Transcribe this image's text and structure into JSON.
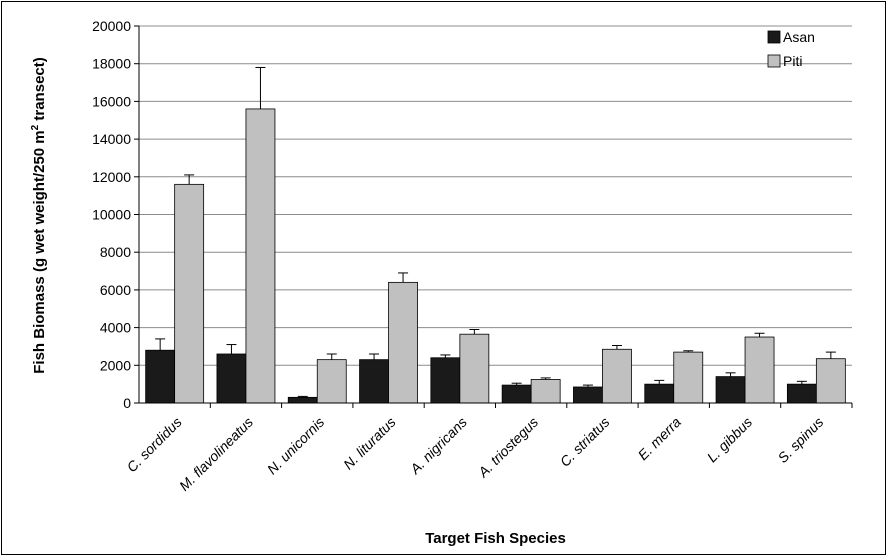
{
  "chart_data": {
    "type": "bar",
    "xlabel": "Target Fish Species",
    "ylabel_parts": {
      "before": "Fish Biomass (g wet weight/250 m",
      "sup": "2",
      "after": " transect)"
    },
    "ylim": [
      0,
      20000
    ],
    "ytick_step": 2000,
    "yticks": [
      "0",
      "2000",
      "4000",
      "6000",
      "8000",
      "10000",
      "12000",
      "14000",
      "16000",
      "18000",
      "20000"
    ],
    "grid": "horizontal",
    "legend_position": "top-right",
    "categories": [
      "C. sordidus",
      "M. flavolineatus",
      "N. unicornis",
      "N. lituratus",
      "A. nigricans",
      "A. triostegus",
      "C. striatus",
      "E. merra",
      "L. gibbus",
      "S. spinus"
    ],
    "series": [
      {
        "name": "Asan",
        "color": "#1a1a1a",
        "values": [
          2800,
          2600,
          300,
          2300,
          2400,
          950,
          850,
          1000,
          1400,
          1000
        ],
        "errors": [
          600,
          500,
          50,
          300,
          150,
          100,
          100,
          200,
          200,
          150
        ]
      },
      {
        "name": "Piti",
        "color": "#c0c0c0",
        "values": [
          11600,
          15600,
          2300,
          6400,
          3650,
          1250,
          2850,
          2700,
          3500,
          2350
        ],
        "errors": [
          500,
          2200,
          300,
          500,
          250,
          80,
          200,
          70,
          200,
          350
        ]
      }
    ]
  }
}
